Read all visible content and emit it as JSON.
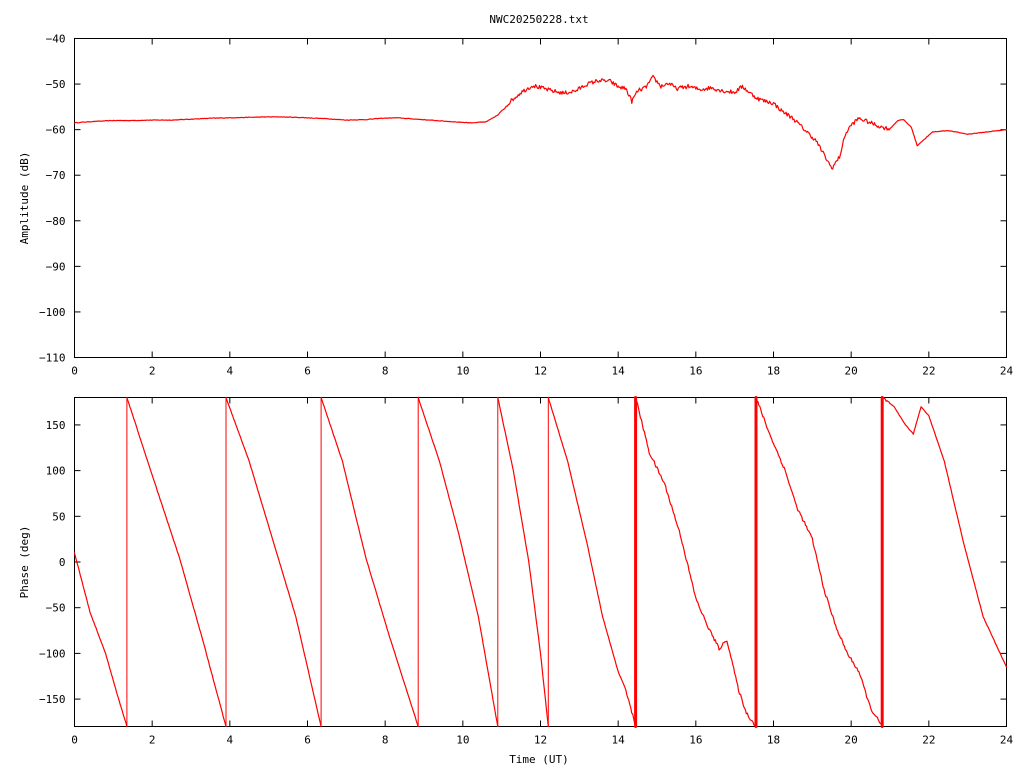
{
  "title": "NWC20250228.txt",
  "colors": {
    "trace": "#ff0000",
    "axis": "#000000",
    "background": "#ffffff"
  },
  "chart_data": [
    {
      "type": "line",
      "title": "NWC20250228.txt",
      "xlabel": "",
      "ylabel": "Amplitude (dB)",
      "xlim": [
        0,
        24
      ],
      "ylim": [
        -110,
        -40
      ],
      "xticks": [
        "0",
        "2",
        "4",
        "6",
        "8",
        "10",
        "12",
        "14",
        "16",
        "18",
        "20",
        "22",
        "24"
      ],
      "yticks": [
        "-110",
        "-100",
        "-90",
        "-80",
        "-70",
        "-60",
        "-50",
        "-40"
      ],
      "grid": false,
      "series": [
        {
          "x": [
            0,
            0.5,
            1.0,
            1.5,
            2.0,
            2.5,
            3.0,
            3.5,
            4.0,
            4.5,
            5.0,
            5.3,
            5.7,
            6.0,
            6.5,
            7.0,
            7.5,
            7.9,
            8.3,
            8.8,
            9.3,
            9.8,
            10.2,
            10.6,
            10.9,
            11.2,
            11.5,
            11.8,
            12.0,
            12.3,
            12.6,
            12.9,
            13.2,
            13.5,
            13.8,
            14.0,
            14.2,
            14.35,
            14.5,
            14.7,
            14.9,
            15.1,
            15.3,
            15.5,
            15.8,
            16.1,
            16.4,
            16.7,
            17.0,
            17.2,
            17.4,
            17.6,
            17.8,
            18.0,
            18.2,
            18.5,
            18.8,
            19.1,
            19.3,
            19.5,
            19.7,
            19.85,
            20.0,
            20.2,
            20.5,
            20.8,
            21.0,
            21.2,
            21.35,
            21.55,
            21.7,
            21.9,
            22.1,
            22.5,
            23.0,
            23.5,
            24.0
          ],
          "y": [
            -58.5,
            -58.2,
            -58.0,
            -58.0,
            -57.9,
            -57.9,
            -57.7,
            -57.5,
            -57.4,
            -57.3,
            -57.2,
            -57.2,
            -57.3,
            -57.4,
            -57.6,
            -57.9,
            -57.8,
            -57.5,
            -57.4,
            -57.7,
            -58.0,
            -58.3,
            -58.5,
            -58.3,
            -56.8,
            -54.0,
            -51.8,
            -50.3,
            -50.8,
            -51.5,
            -52.0,
            -51.5,
            -50.0,
            -49.2,
            -49.4,
            -50.6,
            -51.0,
            -53.8,
            -51.5,
            -50.8,
            -48.5,
            -50.5,
            -49.8,
            -51.0,
            -50.5,
            -51.2,
            -50.8,
            -51.5,
            -51.8,
            -50.5,
            -52.0,
            -53.2,
            -53.8,
            -54.2,
            -55.8,
            -57.5,
            -60.0,
            -62.5,
            -65.5,
            -68.5,
            -66.0,
            -61.0,
            -59.0,
            -57.5,
            -58.5,
            -59.5,
            -59.8,
            -58.0,
            -57.8,
            -59.5,
            -63.5,
            -62.0,
            -60.5,
            -60.2,
            -61.0,
            -60.5,
            -60.0
          ]
        }
      ]
    },
    {
      "type": "line",
      "title": "",
      "xlabel": "Time (UT)",
      "ylabel": "Phase (deg)",
      "xlim": [
        0,
        24
      ],
      "ylim": [
        -180,
        180
      ],
      "xticks": [
        "0",
        "2",
        "4",
        "6",
        "8",
        "10",
        "12",
        "14",
        "16",
        "18",
        "20",
        "22",
        "24"
      ],
      "yticks": [
        "-150",
        "-100",
        "-50",
        "0",
        "50",
        "100",
        "150"
      ],
      "grid": false,
      "series": [
        {
          "segments": [
            {
              "x": [
                0.0,
                0.4,
                0.8,
                1.1,
                1.35
              ],
              "y": [
                10,
                -55,
                -100,
                -145,
                -180
              ]
            },
            {
              "x": [
                1.35,
                1.35
              ],
              "y": [
                -180,
                180
              ]
            },
            {
              "x": [
                1.35,
                2.0,
                2.7,
                3.3,
                3.9
              ],
              "y": [
                180,
                95,
                5,
                -85,
                -180
              ]
            },
            {
              "x": [
                3.9,
                3.9
              ],
              "y": [
                -180,
                180
              ]
            },
            {
              "x": [
                3.9,
                4.5,
                5.1,
                5.7,
                6.35
              ],
              "y": [
                180,
                110,
                25,
                -60,
                -180
              ]
            },
            {
              "x": [
                6.35,
                6.35
              ],
              "y": [
                -180,
                180
              ]
            },
            {
              "x": [
                6.35,
                6.9,
                7.5,
                8.1,
                8.85
              ],
              "y": [
                180,
                110,
                5,
                -80,
                -180
              ]
            },
            {
              "x": [
                8.85,
                8.85
              ],
              "y": [
                -180,
                180
              ]
            },
            {
              "x": [
                8.85,
                9.4,
                9.9,
                10.4,
                10.9
              ],
              "y": [
                180,
                110,
                30,
                -60,
                -180
              ]
            },
            {
              "x": [
                10.9,
                10.9
              ],
              "y": [
                -180,
                180
              ]
            },
            {
              "x": [
                10.9,
                11.3,
                11.7,
                12.0,
                12.2
              ],
              "y": [
                180,
                100,
                0,
                -100,
                -180
              ]
            },
            {
              "x": [
                12.2,
                12.2
              ],
              "y": [
                -180,
                180
              ]
            },
            {
              "x": [
                12.2,
                12.7,
                13.2,
                13.6,
                14.0,
                14.2,
                14.45
              ],
              "y": [
                180,
                110,
                20,
                -60,
                -120,
                -140,
                -180
              ]
            },
            {
              "x": [
                14.45,
                14.45
              ],
              "y": [
                -180,
                180
              ]
            },
            {
              "x": [
                14.45,
                14.8,
                15.2,
                15.6,
                16.0,
                16.3,
                16.6,
                16.8,
                17.1,
                17.3,
                17.55
              ],
              "y": [
                180,
                120,
                85,
                30,
                -40,
                -70,
                -95,
                -85,
                -140,
                -165,
                -180
              ]
            },
            {
              "x": [
                17.55,
                17.55
              ],
              "y": [
                -180,
                180
              ]
            },
            {
              "x": [
                17.55,
                17.9,
                18.3,
                18.6,
                19.0,
                19.3,
                19.6,
                19.9,
                20.2,
                20.5,
                20.8
              ],
              "y": [
                180,
                140,
                100,
                60,
                25,
                -30,
                -70,
                -100,
                -120,
                -160,
                -180
              ]
            },
            {
              "x": [
                20.8,
                20.8
              ],
              "y": [
                -180,
                180
              ]
            },
            {
              "x": [
                20.8,
                21.1,
                21.4,
                21.6,
                21.8,
                22.0,
                22.4,
                22.9,
                23.4,
                24.0
              ],
              "y": [
                180,
                170,
                150,
                140,
                170,
                160,
                110,
                20,
                -60,
                -115
              ]
            }
          ]
        }
      ]
    }
  ]
}
